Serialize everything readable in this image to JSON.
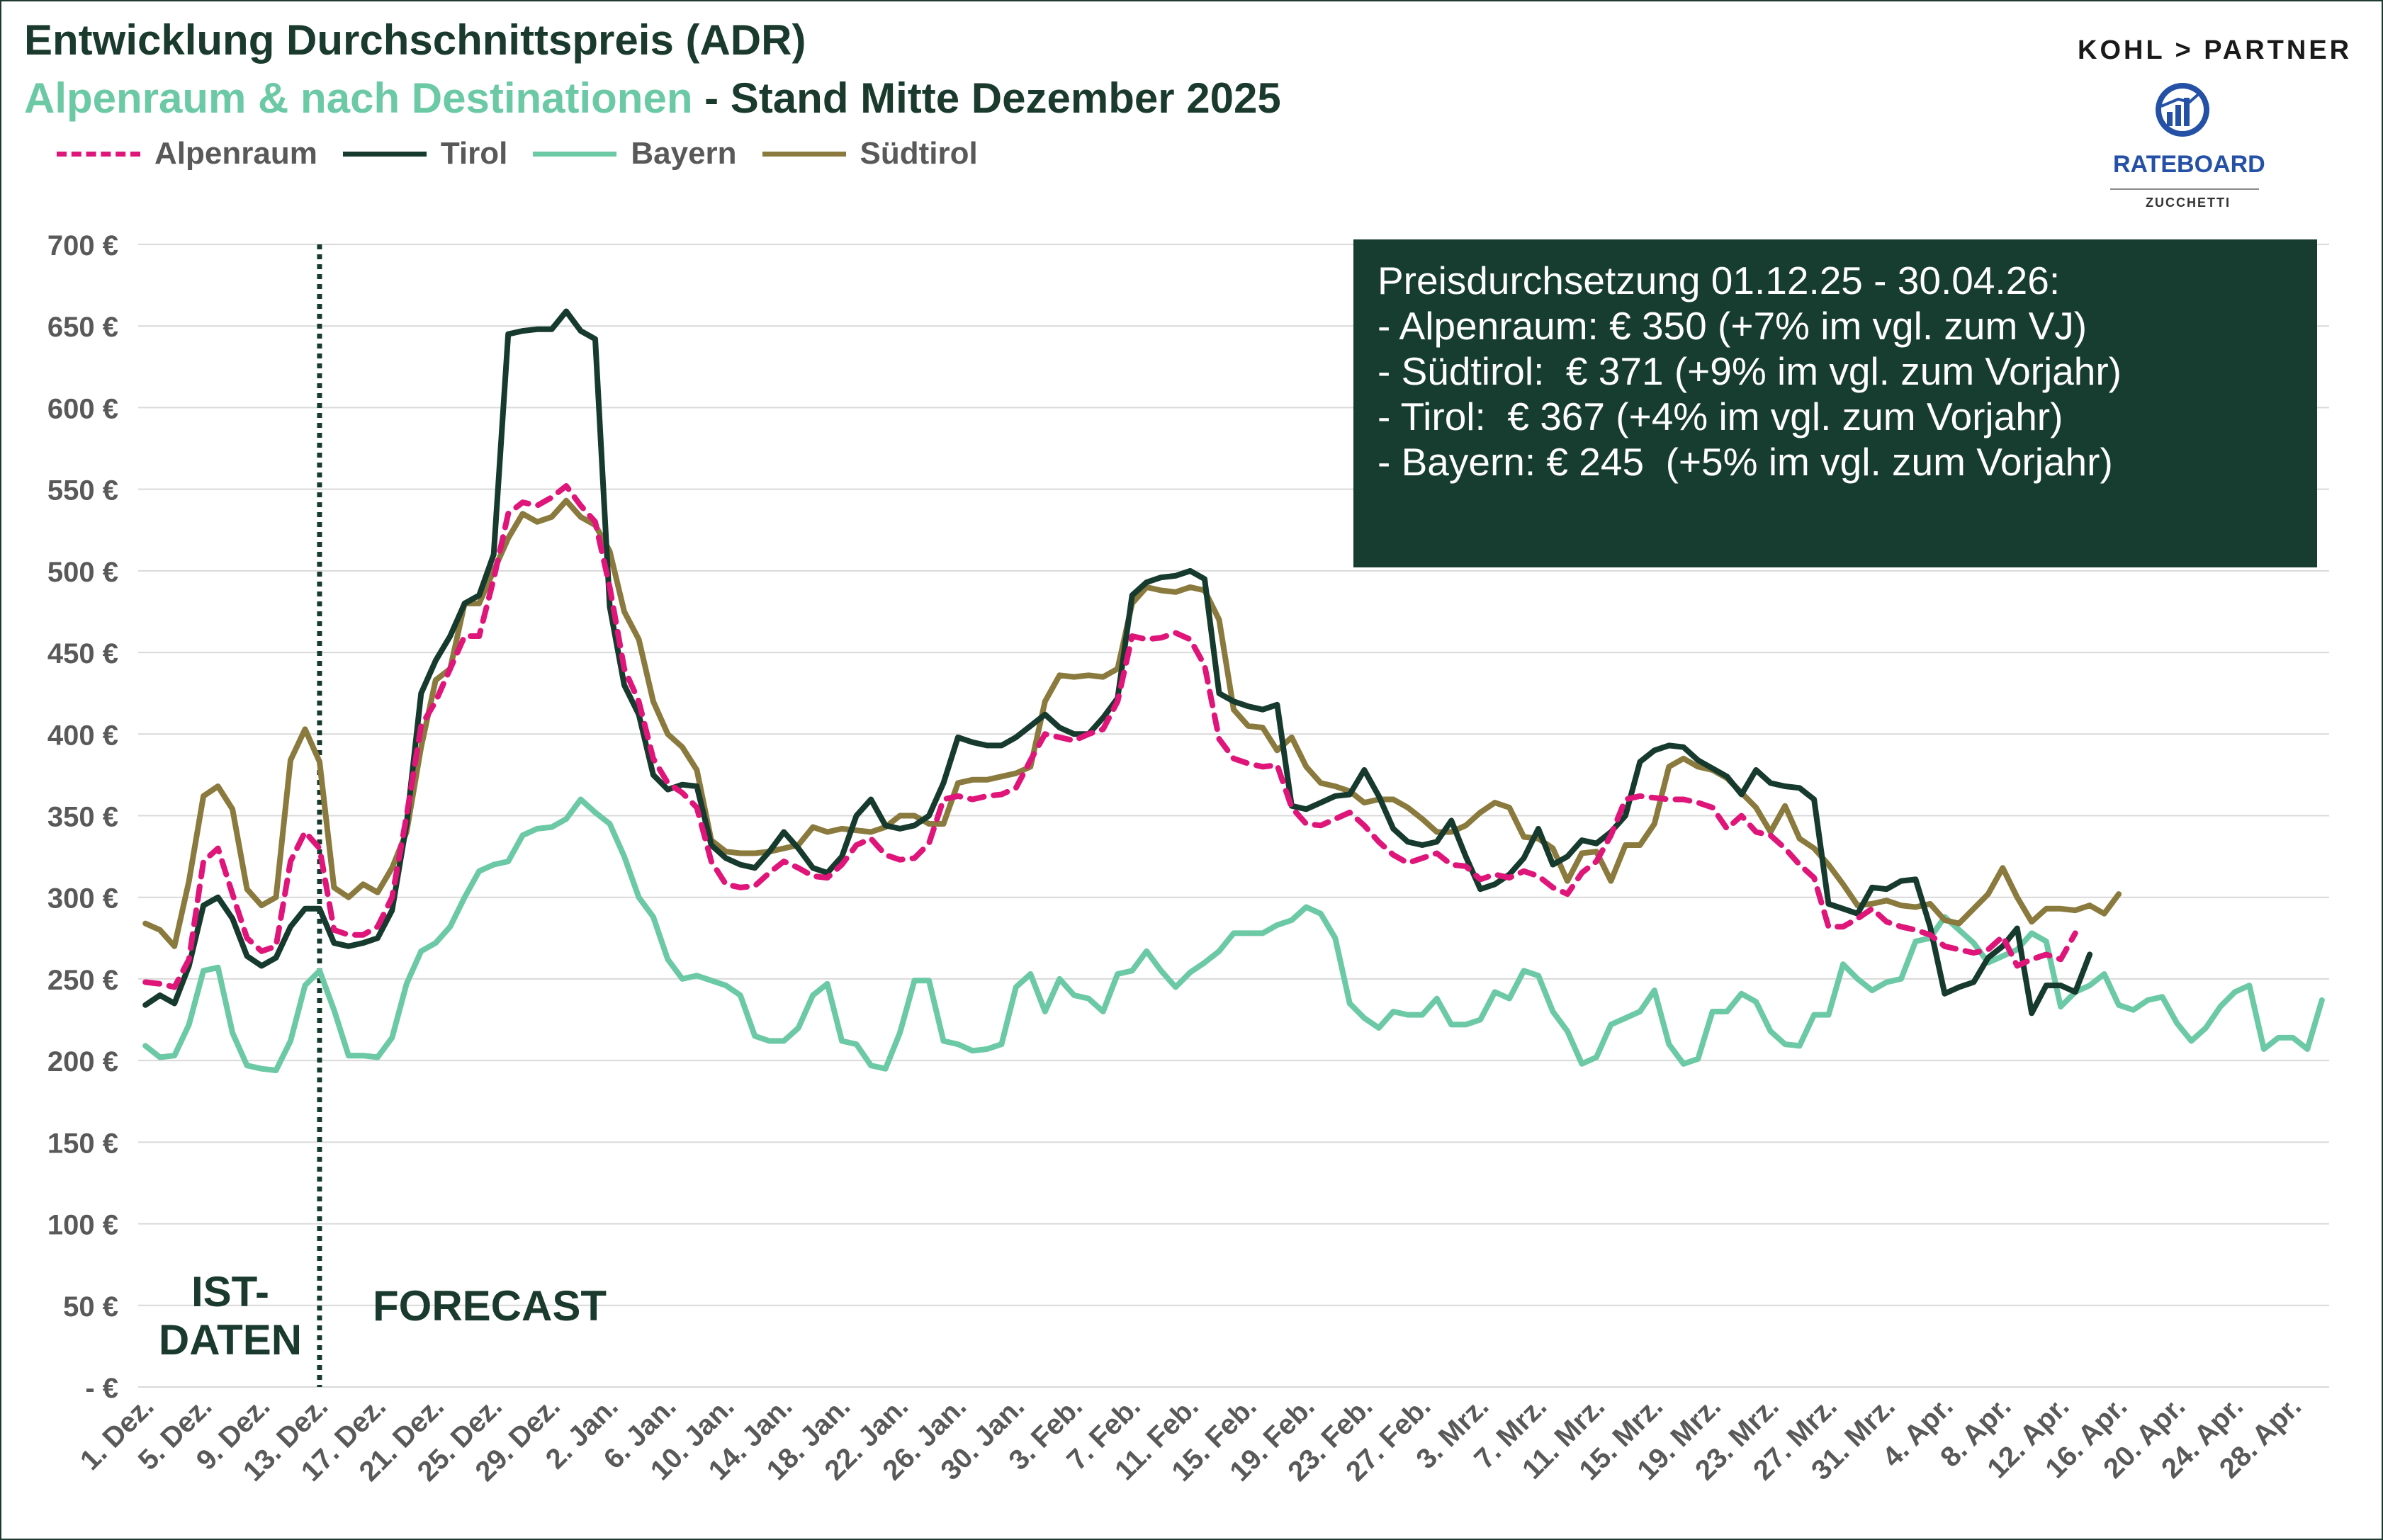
{
  "header": {
    "title": "Entwicklung Durchschnittspreis (ADR)",
    "subtitle_part1": "Alpenraum & nach Destinationen",
    "subtitle_part2": " - Stand Mitte Dezember 2025"
  },
  "branding": {
    "kohl_partner": "KOHL > PARTNER",
    "rateboard": "RATEBOARD",
    "zucchetti": "ZUCCHETTI"
  },
  "info_box": {
    "lines": [
      "Preisdurchsetzung 01.12.25 - 30.04.26:",
      "- Alpenraum: € 350 (+7% im vgl. zum VJ)",
      "- Südtirol:  € 371 (+9% im vgl. zum Vorjahr)",
      "- Tirol:  € 367 (+4% im vgl. zum Vorjahr)",
      "- Bayern: € 245  (+5% im vgl. zum Vorjahr)"
    ]
  },
  "period_labels": {
    "actual": "IST-\nDATEN",
    "forecast": "FORECAST"
  },
  "colors": {
    "alpenraum": "#e0157a",
    "tirol": "#163a2d",
    "bayern": "#6cc9a6",
    "suedtirol": "#8a7a3e",
    "grid": "#d9d9d9",
    "axis_text": "#595959"
  },
  "chart_data": {
    "type": "line",
    "ylim": [
      0,
      700
    ],
    "y_ticks": [
      0,
      50,
      100,
      150,
      200,
      250,
      300,
      350,
      400,
      450,
      500,
      550,
      600,
      650,
      700
    ],
    "y_tick_labels": [
      "- €",
      "50 €",
      "100 €",
      "150 €",
      "200 €",
      "250 €",
      "300 €",
      "350 €",
      "400 €",
      "450 €",
      "500 €",
      "550 €",
      "600 €",
      "650 €",
      "700 €"
    ],
    "x_tick_labels": [
      "1. Dez.",
      "5. Dez.",
      "9. Dez.",
      "13. Dez.",
      "17. Dez.",
      "21. Dez.",
      "25. Dez.",
      "29. Dez.",
      "2. Jan.",
      "6. Jan.",
      "10. Jan.",
      "14. Jan.",
      "18. Jan.",
      "22. Jan.",
      "26. Jan.",
      "30. Jan.",
      "3. Feb.",
      "7. Feb.",
      "11. Feb.",
      "15. Feb.",
      "19. Feb.",
      "23. Feb.",
      "27. Feb.",
      "3. Mrz.",
      "7. Mrz.",
      "11. Mrz.",
      "15. Mrz.",
      "19. Mrz.",
      "23. Mrz.",
      "27. Mrz.",
      "31. Mrz.",
      "4. Apr.",
      "8. Apr.",
      "12. Apr.",
      "16. Apr.",
      "20. Apr.",
      "24. Apr.",
      "28. Apr."
    ],
    "x_tick_every": 4,
    "forecast_start_label": "13. Dez.",
    "series": [
      {
        "name": "Alpenraum",
        "key": "alpenraum",
        "dashed": true,
        "values": [
          248,
          247,
          245,
          262,
          322,
          330,
          302,
          275,
          267,
          270,
          322,
          340,
          330,
          280,
          277,
          277,
          282,
          300,
          350,
          405,
          420,
          440,
          460,
          460,
          495,
          535,
          542,
          540,
          545,
          552,
          540,
          530,
          490,
          440,
          420,
          385,
          370,
          364,
          355,
          322,
          308,
          306,
          307,
          315,
          322,
          318,
          313,
          312,
          320,
          332,
          336,
          326,
          323,
          324,
          333,
          360,
          362,
          360,
          362,
          363,
          367,
          384,
          400,
          398,
          396,
          400,
          403,
          420,
          460,
          458,
          459,
          462,
          458,
          442,
          397,
          385,
          382,
          380,
          381,
          355,
          345,
          344,
          348,
          352,
          344,
          334,
          326,
          321,
          324,
          327,
          320,
          319,
          311,
          314,
          312,
          316,
          313,
          306,
          302,
          315,
          322,
          338,
          360,
          362,
          361,
          360,
          360,
          358,
          355,
          342,
          350,
          340,
          338,
          330,
          320,
          312,
          282,
          282,
          287,
          293,
          285,
          282,
          280,
          277,
          270,
          268,
          266,
          268,
          276,
          258,
          262,
          265,
          262,
          278
        ]
      },
      {
        "name": "Tirol",
        "key": "tirol",
        "dashed": false,
        "values": [
          234,
          240,
          235,
          258,
          295,
          300,
          287,
          264,
          258,
          263,
          282,
          293,
          293,
          272,
          270,
          272,
          275,
          292,
          345,
          425,
          445,
          460,
          480,
          485,
          510,
          645,
          647,
          648,
          648,
          659,
          647,
          642,
          478,
          430,
          412,
          375,
          366,
          369,
          368,
          332,
          324,
          320,
          318,
          328,
          340,
          330,
          318,
          315,
          325,
          350,
          360,
          344,
          342,
          344,
          350,
          370,
          398,
          395,
          393,
          393,
          398,
          405,
          412,
          404,
          400,
          400,
          410,
          422,
          485,
          493,
          496,
          497,
          500,
          495,
          425,
          420,
          417,
          415,
          418,
          356,
          354,
          358,
          362,
          363,
          378,
          362,
          342,
          334,
          332,
          334,
          347,
          325,
          305,
          308,
          314,
          324,
          342,
          320,
          325,
          335,
          333,
          340,
          350,
          383,
          390,
          393,
          392,
          384,
          379,
          374,
          363,
          378,
          370,
          368,
          367,
          360,
          296,
          293,
          290,
          306,
          305,
          310,
          311,
          282,
          241,
          245,
          248,
          263,
          270,
          281,
          229,
          246,
          246,
          242,
          265
        ]
      },
      {
        "name": "Bayern",
        "key": "bayern",
        "dashed": false,
        "values": [
          209,
          202,
          203,
          222,
          255,
          257,
          217,
          197,
          195,
          194,
          212,
          246,
          255,
          231,
          203,
          203,
          202,
          214,
          247,
          267,
          272,
          282,
          300,
          316,
          320,
          322,
          338,
          342,
          343,
          348,
          360,
          352,
          345,
          325,
          300,
          288,
          262,
          250,
          252,
          249,
          246,
          240,
          215,
          212,
          212,
          220,
          240,
          247,
          212,
          210,
          197,
          195,
          217,
          249,
          249,
          212,
          210,
          206,
          207,
          210,
          245,
          253,
          230,
          250,
          240,
          238,
          230,
          253,
          255,
          267,
          255,
          245,
          254,
          260,
          267,
          278,
          278,
          278,
          283,
          286,
          294,
          290,
          275,
          235,
          226,
          220,
          230,
          228,
          228,
          238,
          222,
          222,
          225,
          242,
          238,
          255,
          252,
          230,
          218,
          198,
          202,
          222,
          226,
          230,
          243,
          210,
          198,
          201,
          230,
          230,
          241,
          236,
          218,
          210,
          209,
          228,
          228,
          259,
          250,
          243,
          248,
          250,
          273,
          275,
          288,
          280,
          272,
          260,
          264,
          268,
          278,
          273,
          233,
          242,
          246,
          253,
          234,
          231,
          237,
          239,
          223,
          212,
          220,
          233,
          242,
          246,
          207,
          214,
          214,
          207,
          237
        ]
      },
      {
        "name": "Südtirol",
        "key": "suedtirol",
        "dashed": false,
        "values": [
          284,
          280,
          270,
          310,
          362,
          368,
          354,
          305,
          295,
          300,
          384,
          403,
          383,
          306,
          300,
          308,
          303,
          318,
          340,
          392,
          433,
          440,
          480,
          480,
          500,
          520,
          535,
          530,
          533,
          543,
          533,
          528,
          512,
          475,
          458,
          420,
          400,
          392,
          378,
          335,
          328,
          327,
          327,
          328,
          330,
          332,
          343,
          340,
          342,
          341,
          340,
          343,
          350,
          350,
          345,
          345,
          370,
          372,
          372,
          374,
          376,
          380,
          420,
          436,
          435,
          436,
          435,
          440,
          480,
          490,
          488,
          487,
          490,
          488,
          470,
          415,
          405,
          404,
          390,
          398,
          380,
          370,
          368,
          365,
          358,
          360,
          360,
          355,
          348,
          340,
          340,
          344,
          352,
          358,
          355,
          337,
          336,
          330,
          310,
          327,
          328,
          310,
          332,
          332,
          345,
          380,
          385,
          380,
          378,
          373,
          364,
          355,
          340,
          356,
          336,
          330,
          320,
          308,
          295,
          296,
          298,
          295,
          294,
          296,
          286,
          284,
          293,
          302,
          318,
          300,
          285,
          293,
          293,
          292,
          295,
          290,
          302
        ]
      }
    ]
  }
}
